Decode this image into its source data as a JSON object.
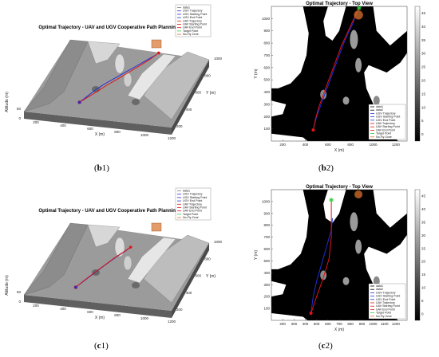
{
  "captions": {
    "b1": {
      "open": "(",
      "letter": "b",
      "num": "1",
      "close": ")"
    },
    "b2": {
      "open": "(",
      "letter": "b",
      "num": "2",
      "close": ")"
    },
    "c1": {
      "open": "(",
      "letter": "c",
      "num": "1",
      "close": ")"
    },
    "c2": {
      "open": "(",
      "letter": "c",
      "num": "2",
      "close": ")"
    }
  },
  "colors": {
    "ugv": "#1f2fd6",
    "uav": "#e01414",
    "target": "#2ecc40",
    "nofly": "#d9722c",
    "terrain": "#000000",
    "free": "#ffffff",
    "surface_top": "#8c8c8c",
    "surface_side": "#5f5f5f"
  },
  "chart_data": [
    {
      "id": "b1",
      "type": "line",
      "view": "3d",
      "title": "Optimal Trajectory - UAV and UGV Cooperative Path Planning",
      "xlabel": "X (m)",
      "ylabel": "Y (m)",
      "zlabel": "Altitude (m)",
      "x_ticks": [
        "200",
        "400",
        "600",
        "800",
        "1000",
        "1200"
      ],
      "y_ticks": [
        "200",
        "400",
        "600",
        "800",
        "1000"
      ],
      "z_ticks": [
        "0",
        "50"
      ],
      "legend": [
        "data1",
        "UGV Trajectory",
        "UGV Starting Point",
        "UGV End Point",
        "UAV Trajectory",
        "UAV Starting Point",
        "UAV End Point",
        "Target Point",
        "No-Fly Zone"
      ],
      "series": [
        {
          "name": "UGV Trajectory",
          "x": [
            500,
            530,
            560,
            600,
            650,
            700,
            750,
            800,
            850
          ],
          "y": [
            150,
            250,
            350,
            450,
            550,
            650,
            750,
            850,
            950
          ]
        },
        {
          "name": "UAV Trajectory",
          "x": [
            500,
            540,
            580,
            620,
            670,
            720,
            770,
            820,
            860
          ],
          "y": [
            150,
            240,
            330,
            430,
            530,
            640,
            750,
            860,
            980
          ]
        }
      ]
    },
    {
      "id": "b2",
      "type": "line",
      "view": "top",
      "title": "Optimal Trajectory - Top View",
      "xlabel": "X (m)",
      "ylabel": "Y (m)",
      "xlim": [
        100,
        1300
      ],
      "ylim": [
        0,
        1100
      ],
      "x_ticks": [
        "200",
        "400",
        "600",
        "800",
        "1000",
        "1200"
      ],
      "y_ticks": [
        "100",
        "200",
        "300",
        "400",
        "500",
        "600",
        "700",
        "800",
        "900",
        "1000"
      ],
      "colorbar_ticks": [
        "0",
        "5",
        "10",
        "15",
        "20",
        "25",
        "30",
        "35",
        "40",
        "45"
      ],
      "legend": [
        "data1",
        "data2",
        "UGV Trajectory",
        "UGV Starting Point",
        "UGV End Point",
        "UAV Trajectory",
        "UAV Starting Point",
        "UAV End Point",
        "Target Point",
        "No-Fly Zone"
      ],
      "series": [
        {
          "name": "UGV Trajectory",
          "x": [
            470,
            500,
            540,
            580,
            620,
            660,
            700,
            740,
            780,
            820,
            850,
            870
          ],
          "y": [
            90,
            200,
            300,
            400,
            500,
            600,
            700,
            800,
            880,
            960,
            1040,
            1080
          ]
        },
        {
          "name": "UAV Trajectory",
          "x": [
            470,
            490,
            520,
            560,
            600,
            640,
            680,
            720,
            760,
            800,
            840,
            870
          ],
          "y": [
            90,
            180,
            280,
            380,
            480,
            580,
            680,
            780,
            860,
            940,
            1020,
            1080
          ]
        }
      ],
      "ugv_start": [
        470,
        90
      ],
      "target": [
        875,
        1085
      ],
      "nofly_center": [
        870,
        1030
      ],
      "nofly_radius": 40
    },
    {
      "id": "c1",
      "type": "line",
      "view": "3d",
      "title": "Optimal Trajectory - UAV and UGV Cooperative Path Planning",
      "xlabel": "X (m)",
      "ylabel": "Y (m)",
      "zlabel": "Altitude (m)",
      "x_ticks": [
        "200",
        "400",
        "600",
        "800",
        "1000",
        "1200"
      ],
      "y_ticks": [
        "200",
        "400",
        "600",
        "800",
        "1000"
      ],
      "z_ticks": [
        "0",
        "50"
      ],
      "legend": [
        "data1",
        "UGV Trajectory",
        "UGV Starting Point",
        "UGV End Point",
        "UAV Trajectory",
        "UAV Starting Point",
        "UAV End Point",
        "Target Point",
        "No-Fly Zone"
      ],
      "series": [
        {
          "name": "UGV Trajectory",
          "x": [
            480,
            520,
            560,
            600,
            640,
            680,
            700
          ],
          "y": [
            120,
            250,
            380,
            500,
            620,
            720,
            780
          ]
        },
        {
          "name": "UAV Trajectory",
          "x": [
            480,
            510,
            550,
            590,
            630,
            670,
            700
          ],
          "y": [
            120,
            230,
            360,
            480,
            600,
            700,
            780
          ]
        }
      ]
    },
    {
      "id": "c2",
      "type": "line",
      "view": "top",
      "title": "Optimal Trajectory - Top View",
      "xlabel": "X (m)",
      "ylabel": "Y (m)",
      "xlim": [
        100,
        1300
      ],
      "ylim": [
        0,
        1100
      ],
      "x_ticks": [
        "200",
        "300",
        "400",
        "500",
        "600",
        "700",
        "800",
        "900",
        "1000",
        "1100",
        "1200"
      ],
      "y_ticks": [
        "100",
        "200",
        "300",
        "400",
        "500",
        "600",
        "700",
        "800",
        "900",
        "1000"
      ],
      "colorbar_ticks": [
        "0",
        "5",
        "10",
        "15",
        "20",
        "25",
        "30",
        "35",
        "40",
        "45"
      ],
      "legend": [
        "data1",
        "data2",
        "UGV Trajectory",
        "UGV Starting Point",
        "UGV End Point",
        "UAV Trajectory",
        "UAV Starting Point",
        "UAV End Point",
        "Target Point",
        "No-Fly Zone"
      ],
      "series": [
        {
          "name": "UGV Trajectory",
          "x": [
            450,
            470,
            500,
            540,
            570,
            600,
            630,
            640
          ],
          "y": [
            60,
            200,
            330,
            460,
            560,
            660,
            760,
            860
          ]
        },
        {
          "name": "UAV Trajectory",
          "x": [
            450,
            500,
            560,
            610,
            630,
            630,
            630
          ],
          "y": [
            60,
            200,
            360,
            520,
            700,
            880,
            1010
          ]
        }
      ],
      "ugv_start": [
        450,
        60
      ],
      "target": [
        630,
        1010
      ],
      "nofly_center": [
        870,
        1060
      ],
      "nofly_radius": 35
    }
  ]
}
